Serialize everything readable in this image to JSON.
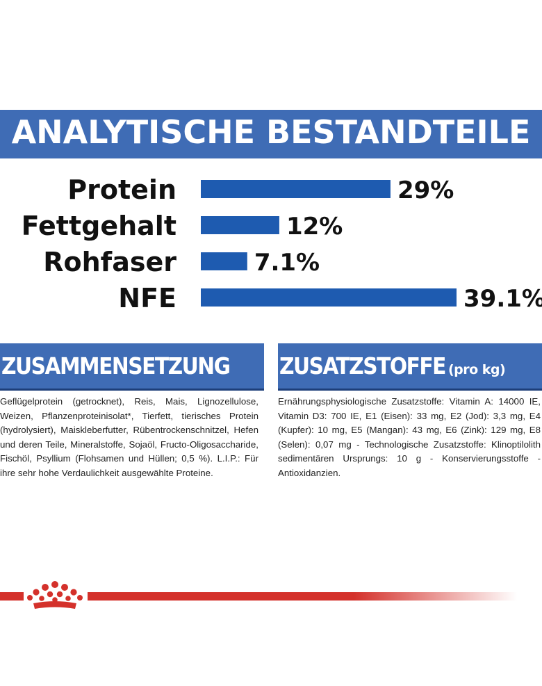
{
  "header": {
    "title": "ANALYTISCHE BESTANDTEILE"
  },
  "chart_data": {
    "type": "bar",
    "orientation": "horizontal",
    "categories": [
      "Protein",
      "Fettgehalt",
      "Rohfaser",
      "NFE"
    ],
    "values": [
      29,
      12,
      7.1,
      39.1
    ],
    "value_labels": [
      "29%",
      "12%",
      "7.1%",
      "39.1%"
    ],
    "unit": "%",
    "bar_color": "#1e5bb0",
    "xlim": [
      0,
      39.1
    ]
  },
  "composition": {
    "title": "ZUSAMMENSETZUNG",
    "text": "Geflügelprotein (getrocknet), Reis, Mais, Lignozellulose, Weizen, Pflanzenproteinisolat*, Tierfett, tierisches Protein (hydrolysiert), Maiskleberfutter, Rübentrockenschnitzel, Hefen und deren Teile, Mineralstoffe, Sojaöl, Fructo-Oligosaccharide, Fischöl, Psyllium (Flohsamen und Hüllen; 0,5 %). L.I.P.: Für ihre sehr hohe Verdaulichkeit ausgewählte Proteine."
  },
  "additives": {
    "title": "ZUSATZSTOFFE",
    "subtitle": "(pro kg)",
    "text": "Ernährungsphysiologische Zusatzstoffe: Vitamin A: 14000 IE, Vitamin D3: 700 IE, E1 (Eisen): 33 mg, E2 (Jod): 3,3 mg, E4 (Kupfer): 10 mg, E5 (Mangan): 43 mg, E6 (Zink): 129 mg, E8 (Selen): 0,07 mg - Technologische Zusatzstoffe: Klinoptilolith sedimentären Ursprungs: 10 g - Konservierungsstoffe - Antioxidanzien."
  },
  "footer": {
    "logo_icon": "crown-icon",
    "accent_color": "#d4312b"
  }
}
